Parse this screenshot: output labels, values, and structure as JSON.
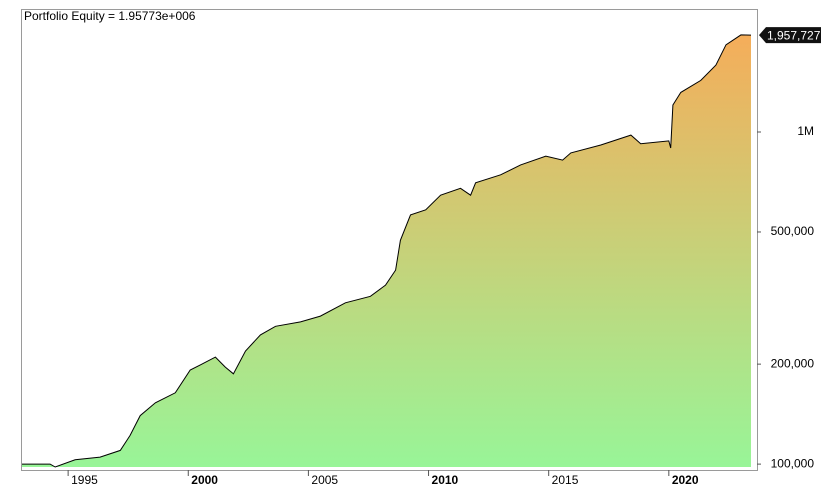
{
  "chart_data": {
    "type": "area",
    "title": "Portfolio Equity = 1.95773e+006",
    "last_label": "1,957,727",
    "log_scale": true,
    "xlim": [
      1993.08,
      2023.67
    ],
    "xticks": [
      1995,
      2000,
      2005,
      2010,
      2015,
      2020
    ],
    "ylim": [
      96000,
      2330000
    ],
    "yticks": [
      {
        "value": 100000,
        "label": "100,000"
      },
      {
        "value": 200000,
        "label": "200,000"
      },
      {
        "value": 500000,
        "label": "500,000"
      },
      {
        "value": 1000000,
        "label": "1M"
      }
    ],
    "x": [
      1993.08,
      1994.25,
      1994.46,
      1995.29,
      1996.33,
      1997.17,
      1997.58,
      1998.0,
      1998.63,
      1999.46,
      2000.08,
      2000.5,
      2001.13,
      2001.54,
      2001.88,
      2002.38,
      2003.0,
      2003.63,
      2004.67,
      2005.5,
      2006.54,
      2007.58,
      2008.21,
      2008.63,
      2008.83,
      2009.25,
      2009.88,
      2010.5,
      2011.33,
      2011.75,
      2011.96,
      2013.0,
      2013.83,
      2014.88,
      2015.58,
      2015.92,
      2017.17,
      2018.42,
      2018.83,
      2020.0,
      2020.08,
      2020.17,
      2020.5,
      2021.33,
      2021.96,
      2022.38,
      2023.0,
      2023.42
    ],
    "series": [
      {
        "name": "Portfolio Equity",
        "color": "#000000",
        "gradient": [
          "#98f598",
          "#f5ad5a"
        ],
        "values": [
          100000,
          100000,
          98000,
          103000,
          105000,
          110000,
          122000,
          140000,
          153000,
          164000,
          192000,
          199000,
          210000,
          196000,
          187000,
          219000,
          245000,
          260000,
          268000,
          279000,
          306000,
          320000,
          346000,
          384000,
          472000,
          563000,
          583000,
          645000,
          677000,
          645000,
          703000,
          743000,
          796000,
          846000,
          823000,
          865000,
          914000,
          979000,
          922000,
          940000,
          895000,
          1206000,
          1316000,
          1430000,
          1590000,
          1830000,
          1960000,
          1957727
        ]
      }
    ]
  }
}
